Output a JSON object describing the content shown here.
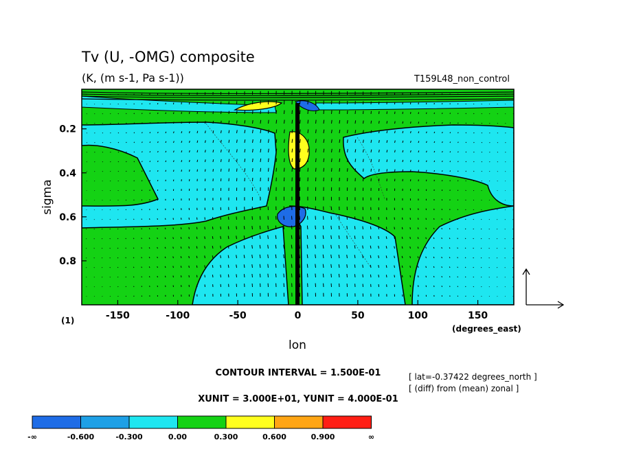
{
  "chart_data": {
    "type": "heatmap",
    "title": "Tv (U, -OMG) composite",
    "subtitle": "(K, (m s-1, Pa s-1))",
    "run_label": "T159L48_non_control",
    "xlabel": "lon",
    "ylabel": "sigma",
    "x_unit_label": "(degrees_east)",
    "panel_label": "(1)",
    "xlim": [
      -180,
      180
    ],
    "ylim": [
      0.02,
      1.0
    ],
    "y_inverted": true,
    "x_ticks": [
      -150,
      -100,
      -50,
      0,
      50,
      100,
      150
    ],
    "y_ticks": [
      0.2,
      0.4,
      0.6,
      0.8
    ],
    "contour_interval_text": "CONTOUR INTERVAL = 1.500E-01",
    "vector_unit_text": "XUNIT = 3.000E+01, YUNIT = 4.000E-01",
    "info_lines": [
      "[ lat=-0.37422 degrees_north ]",
      "[ (diff) from (mean) zonal ]"
    ],
    "colorbar": {
      "colors": [
        "#1e6ce6",
        "#1ea0e6",
        "#1ee6f0",
        "#14d214",
        "#ffff1e",
        "#ffa514",
        "#ff1e14"
      ],
      "tick_labels": [
        "-∞",
        "-0.600",
        "-0.300",
        "0.00",
        "0.300",
        "0.600",
        "0.900",
        "∞"
      ]
    },
    "legend_colors": {
      "frame": "#000000",
      "background": "#ffffff"
    }
  }
}
